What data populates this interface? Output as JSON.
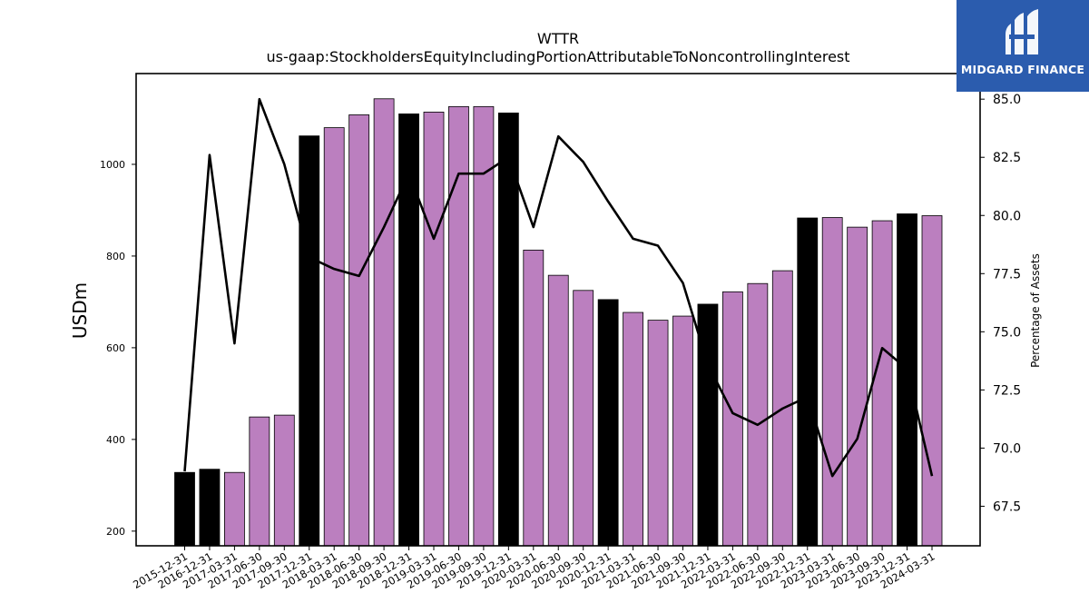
{
  "chart_data": {
    "type": "bar",
    "title": "WTTR",
    "subtitle": "us-gaap:StockholdersEquityIncludingPortionAttributableToNoncontrollingInterest",
    "ylabel": "USDm",
    "y2label": "Percentage of Assets",
    "ylim": [
      168,
      1198
    ],
    "y2lim": [
      65.8,
      86.1
    ],
    "yticks": [
      200,
      400,
      600,
      800,
      1000
    ],
    "y2ticks": [
      67.5,
      70.0,
      72.5,
      75.0,
      77.5,
      80.0,
      82.5,
      85.0
    ],
    "categories": [
      "2015-12-31",
      "2016-12-31",
      "2017-03-31",
      "2017-06-30",
      "2017-09-30",
      "2017-12-31",
      "2018-03-31",
      "2018-06-30",
      "2018-09-30",
      "2018-12-31",
      "2019-03-31",
      "2019-06-30",
      "2019-09-30",
      "2019-12-31",
      "2020-03-31",
      "2020-06-30",
      "2020-09-30",
      "2020-12-31",
      "2021-03-31",
      "2021-06-30",
      "2021-09-30",
      "2021-12-31",
      "2022-03-31",
      "2022-06-30",
      "2022-09-30",
      "2022-12-31",
      "2023-03-31",
      "2023-06-30",
      "2023-09-30",
      "2023-12-31",
      "2024-03-31"
    ],
    "series": [
      {
        "type": "bar",
        "values": [
          328,
          335,
          328,
          449,
          453,
          1062,
          1080,
          1108,
          1143,
          1110,
          1114,
          1126,
          1126,
          1112,
          813,
          758,
          725,
          705,
          677,
          660,
          669,
          695,
          722,
          740,
          768,
          883,
          884,
          863,
          877,
          892,
          888
        ],
        "annual_flags": [
          true,
          true,
          false,
          false,
          false,
          true,
          false,
          false,
          false,
          true,
          false,
          false,
          false,
          true,
          false,
          false,
          false,
          true,
          false,
          false,
          false,
          true,
          false,
          false,
          false,
          true,
          false,
          false,
          false,
          true,
          false
        ],
        "colors": {
          "annual": "#000000",
          "quarterly": "#bb7fbf"
        }
      },
      {
        "type": "line",
        "axis": "right",
        "values": [
          69.0,
          82.6,
          74.5,
          85.0,
          82.2,
          78.2,
          77.7,
          77.4,
          79.5,
          81.8,
          79.0,
          81.8,
          81.8,
          82.5,
          79.5,
          83.4,
          82.3,
          80.6,
          79.0,
          78.7,
          77.1,
          73.6,
          71.5,
          71.0,
          71.7,
          72.2,
          68.8,
          70.4,
          74.3,
          73.4,
          68.8
        ],
        "color": "#000000"
      }
    ]
  },
  "logo": {
    "text": "MIDGARD FINANCE",
    "bg": "#2b5cae"
  }
}
